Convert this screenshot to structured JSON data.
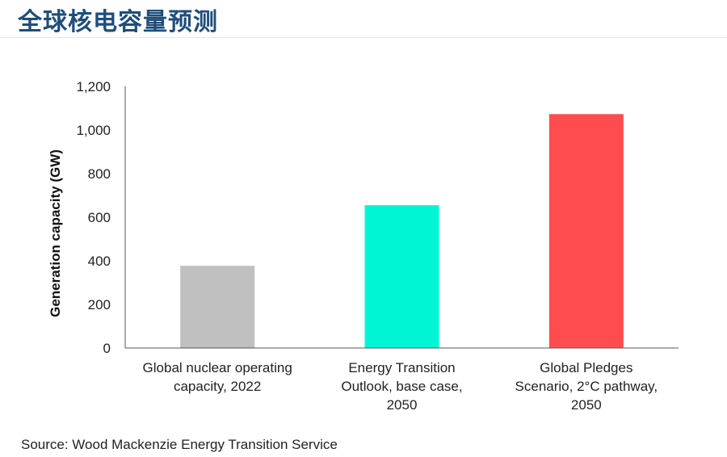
{
  "header": {
    "title": "全球核电容量预测"
  },
  "footer": {
    "source": "Source: Wood Mackenzie Energy Transition Service"
  },
  "colors": {
    "title": "#1f4e79",
    "axis": "#555555"
  },
  "chart_data": {
    "type": "bar",
    "title": "",
    "xlabel": "",
    "ylabel": "Generation capacity (GW)",
    "ylim": [
      0,
      1200
    ],
    "yticks": [
      0,
      200,
      400,
      600,
      800,
      1000,
      1200
    ],
    "ytick_labels": [
      "0",
      "200",
      "400",
      "600",
      "800",
      "1,000",
      "1,200"
    ],
    "categories": [
      [
        "Global nuclear operating",
        "capacity, 2022"
      ],
      [
        "Energy Transition",
        "Outlook, base case,",
        "2050"
      ],
      [
        "Global Pledges",
        "Scenario, 2°C pathway,",
        "2050"
      ]
    ],
    "values": [
      377,
      655,
      1073
    ],
    "bar_colors": [
      "#c0c0c0",
      "#00f5d4",
      "#ff4d4f"
    ],
    "grid": false,
    "legend": "none"
  }
}
